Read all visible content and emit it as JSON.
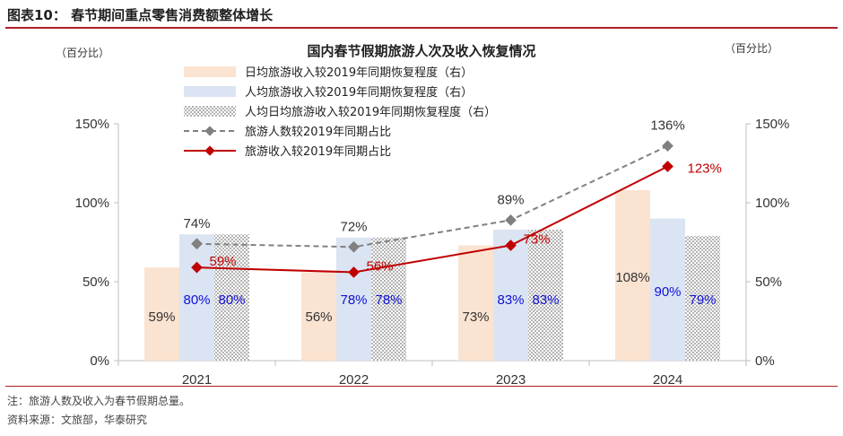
{
  "figure_title": "图表10：  春节期间重点零售消费额整体增长",
  "note": "注：旅游人数及收入为春节假期总量。",
  "source": "资料来源：文旅部，华泰研究",
  "colors": {
    "accent_red": "#b02026",
    "bar_daily": "#fbe3d1",
    "bar_per": "#dbe4f2",
    "bar_pattern": "#b3b3b3",
    "line_people": "#808080",
    "line_income": "#c00000",
    "label_blue": "#1010d8"
  },
  "chart_data": {
    "type": "bar",
    "title": "国内春节假期旅游人次及收入恢复情况",
    "left_unit": "（百分比）",
    "right_unit": "（百分比）",
    "categories": [
      "2021",
      "2022",
      "2023",
      "2024"
    ],
    "y_left": {
      "min": 0,
      "max": 150,
      "ticks": [
        "0%",
        "50%",
        "100%",
        "150%"
      ],
      "tick_values": [
        0,
        50,
        100,
        150
      ]
    },
    "y_right": {
      "min": 0,
      "max": 150,
      "ticks": [
        "0%",
        "50%",
        "100%",
        "150%"
      ],
      "tick_values": [
        0,
        50,
        100,
        150
      ]
    },
    "grid": false,
    "legend_position": "top-left",
    "series": [
      {
        "name": "日均旅游收入较2019年同期恢复程度（右）",
        "type": "bar",
        "axis": "right",
        "values": [
          59,
          56,
          73,
          108
        ],
        "labels": [
          "59%",
          "56%",
          "73%",
          "108%"
        ]
      },
      {
        "name": "人均旅游收入较2019年同期恢复程度（右）",
        "type": "bar",
        "axis": "right",
        "values": [
          80,
          78,
          83,
          90
        ],
        "labels": [
          "80%",
          "78%",
          "83%",
          "90%"
        ]
      },
      {
        "name": "人均日均旅游收入较2019年同期恢复程度（右）",
        "type": "bar",
        "axis": "right",
        "values": [
          80,
          78,
          83,
          79
        ],
        "labels": [
          "80%",
          "78%",
          "83%",
          "79%"
        ]
      },
      {
        "name": "旅游人数较2019年同期占比",
        "type": "line",
        "axis": "left",
        "style": "dashed",
        "values": [
          74,
          72,
          89,
          136
        ],
        "labels": [
          "74%",
          "72%",
          "89%",
          "136%"
        ]
      },
      {
        "name": "旅游收入较2019年同期占比",
        "type": "line",
        "axis": "left",
        "style": "solid",
        "values": [
          59,
          56,
          73,
          123
        ],
        "labels": [
          "59%",
          "56%",
          "73%",
          "123%"
        ]
      }
    ]
  }
}
